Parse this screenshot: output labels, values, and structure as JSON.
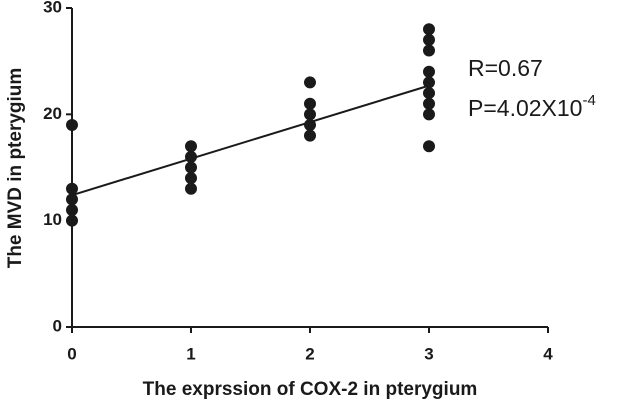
{
  "chart_data": {
    "type": "scatter",
    "x_label": "The exprssion of COX-2 in pterygium",
    "y_label": "The MVD in pterygium",
    "series": [
      {
        "color": "#1a1a1a",
        "x": [
          0,
          0,
          0,
          0,
          0,
          1,
          1,
          1,
          1,
          1,
          2,
          2,
          2,
          2,
          2,
          3,
          3,
          3,
          3,
          3,
          3,
          3,
          3,
          3
        ],
        "values": [
          19,
          13,
          12,
          11,
          10,
          17,
          16,
          15,
          14,
          13,
          23,
          21,
          20,
          19,
          18,
          28,
          27,
          26,
          24,
          23,
          22,
          21,
          20,
          17
        ]
      }
    ],
    "fit": {
      "color": "#1a1a1a",
      "x": [
        0,
        3
      ],
      "values": [
        12.4,
        22.7
      ]
    },
    "annotations": [
      {
        "text": "R=0.67"
      },
      {
        "text": "P=4.02X10",
        "superscript": "-4"
      }
    ],
    "xlim": [
      0,
      4
    ],
    "xticks": [
      0,
      1,
      2,
      3,
      4
    ],
    "ylim": [
      0,
      30
    ],
    "yticks": [
      0,
      10,
      20,
      30
    ]
  }
}
